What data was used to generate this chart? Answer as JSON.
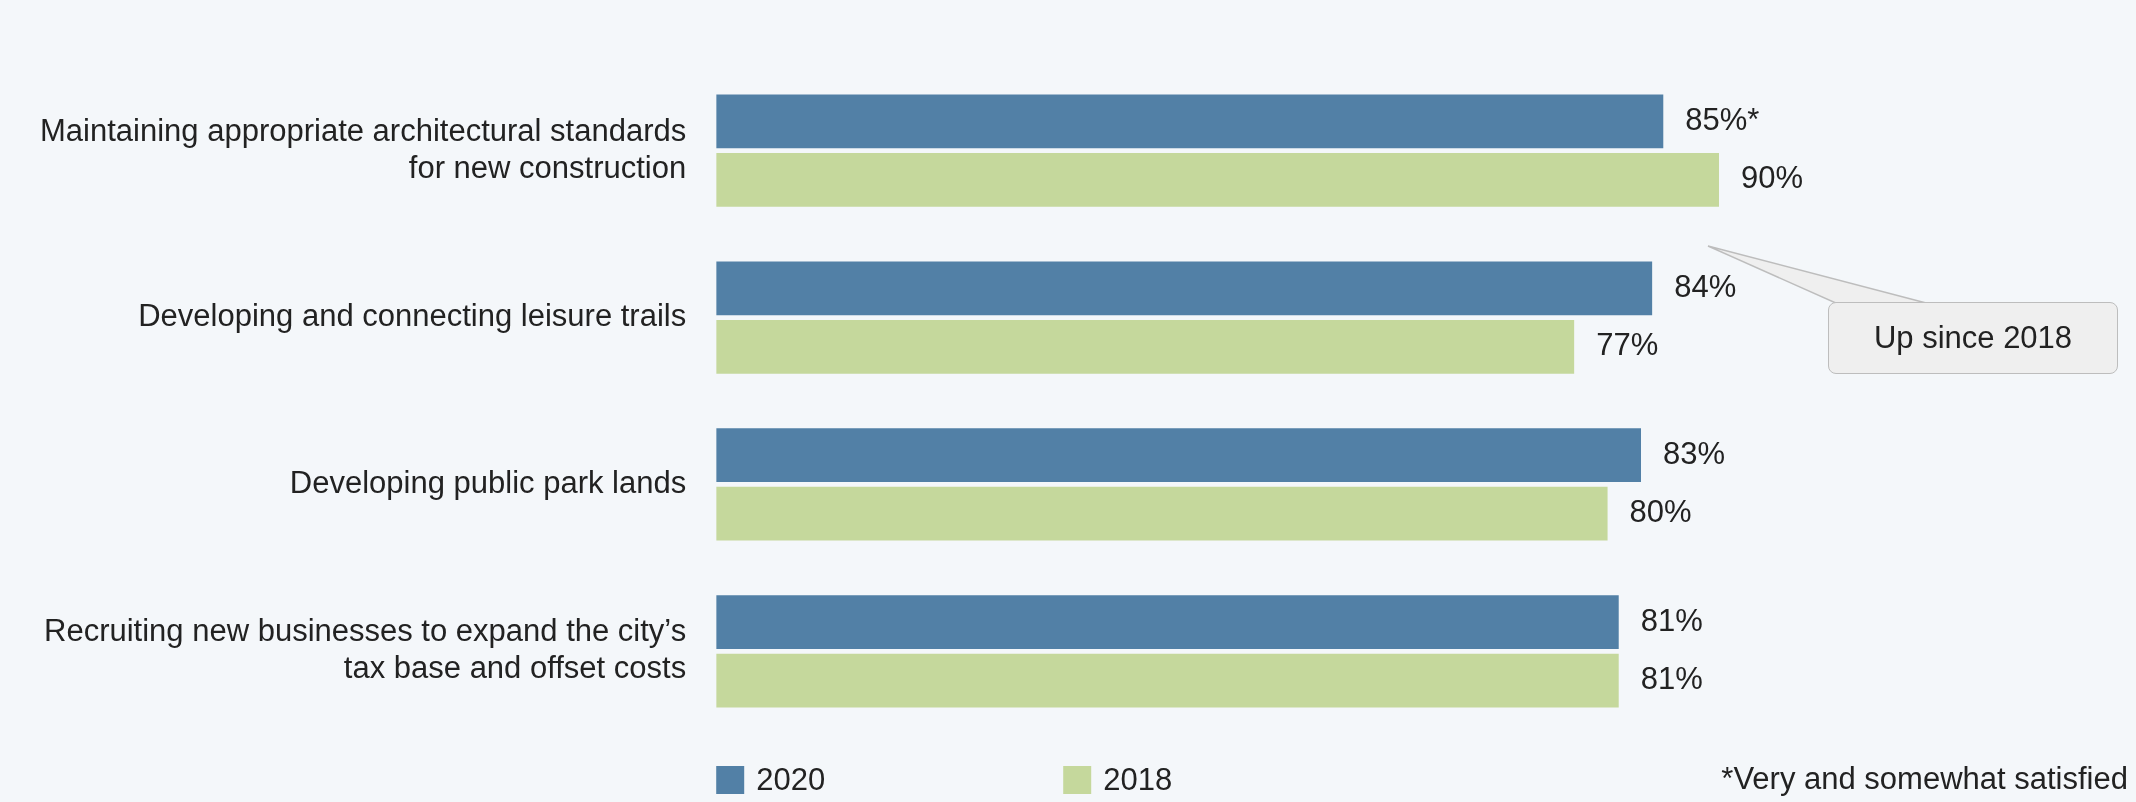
{
  "chart_data": {
    "type": "bar",
    "orientation": "horizontal",
    "categories": [
      "Maintaining appropriate architectural standards for new construction",
      "Developing and connecting leisure trails",
      "Developing public park lands",
      "Recruiting new businesses to expand the city’s tax base and offset costs"
    ],
    "series": [
      {
        "name": "2020",
        "color": "#5280a6",
        "values": [
          85,
          84,
          83,
          81
        ],
        "value_labels": [
          "85%*",
          "84%",
          "83%",
          "81%"
        ]
      },
      {
        "name": "2018",
        "color": "#c5d89c",
        "values": [
          90,
          77,
          80,
          81
        ],
        "value_labels": [
          "90%",
          "77%",
          "80%",
          "81%"
        ]
      }
    ],
    "tick_labels": "y",
    "legend": "bottom",
    "annotations": [
      "Up since 2018",
      "*Very and somewhat satisfied"
    ]
  }
}
